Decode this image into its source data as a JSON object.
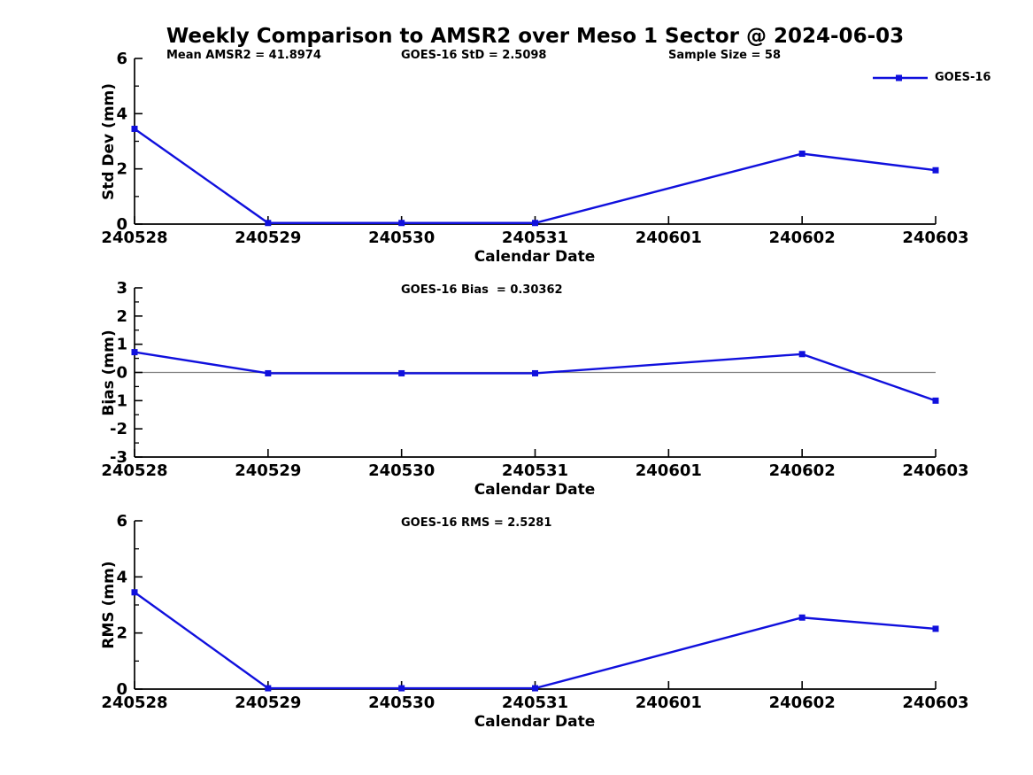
{
  "title": "Weekly Comparison to AMSR2 over Meso 1 Sector @ 2024-06-03",
  "legend": {
    "label": "GOES-16"
  },
  "colors": {
    "series": "#1010DD",
    "axis": "#000000",
    "zero_line": "#808080",
    "text": "#000000",
    "background": "#FFFFFF"
  },
  "chart_data": [
    {
      "type": "line",
      "panel": "std-dev",
      "ylabel": "Std Dev (mm)",
      "xlabel": "Calendar Date",
      "annotations": [
        "Mean AMSR2 = 41.8974",
        "GOES-16 StD = 2.5098",
        "Sample Size = 58"
      ],
      "categories": [
        "240528",
        "240529",
        "240530",
        "240531",
        "240601",
        "240602",
        "240603"
      ],
      "series": [
        {
          "name": "GOES-16",
          "values": [
            3.45,
            0.04,
            0.04,
            0.04,
            null,
            2.55,
            1.95
          ]
        }
      ],
      "ylim": [
        0,
        6
      ],
      "yticks": [
        0,
        2,
        4,
        6
      ],
      "minor_yticks": [
        1,
        3,
        5
      ],
      "zero_line": false,
      "legend_position": "top-right-outside",
      "grid": false
    },
    {
      "type": "line",
      "panel": "bias",
      "ylabel": "Bias (mm)",
      "xlabel": "Calendar Date",
      "annotations": [
        "GOES-16 Bias  = 0.30362"
      ],
      "categories": [
        "240528",
        "240529",
        "240530",
        "240531",
        "240601",
        "240602",
        "240603"
      ],
      "series": [
        {
          "name": "GOES-16",
          "values": [
            0.72,
            -0.03,
            -0.03,
            -0.03,
            null,
            0.65,
            -1.0
          ]
        }
      ],
      "ylim": [
        -3,
        3
      ],
      "yticks": [
        -3,
        -2,
        -1,
        0,
        1,
        2,
        3
      ],
      "minor_yticks": [
        -2.5,
        -1.5,
        -0.5,
        0.5,
        1.5,
        2.5
      ],
      "zero_line": true,
      "grid": false
    },
    {
      "type": "line",
      "panel": "rms",
      "ylabel": "RMS (mm)",
      "xlabel": "Calendar Date",
      "annotations": [
        "GOES-16 RMS = 2.5281"
      ],
      "categories": [
        "240528",
        "240529",
        "240530",
        "240531",
        "240601",
        "240602",
        "240603"
      ],
      "series": [
        {
          "name": "GOES-16",
          "values": [
            3.45,
            0.03,
            0.03,
            0.03,
            null,
            2.55,
            2.15
          ]
        }
      ],
      "ylim": [
        0,
        6
      ],
      "yticks": [
        0,
        2,
        4,
        6
      ],
      "minor_yticks": [
        1,
        3,
        5
      ],
      "zero_line": false,
      "grid": false
    }
  ]
}
